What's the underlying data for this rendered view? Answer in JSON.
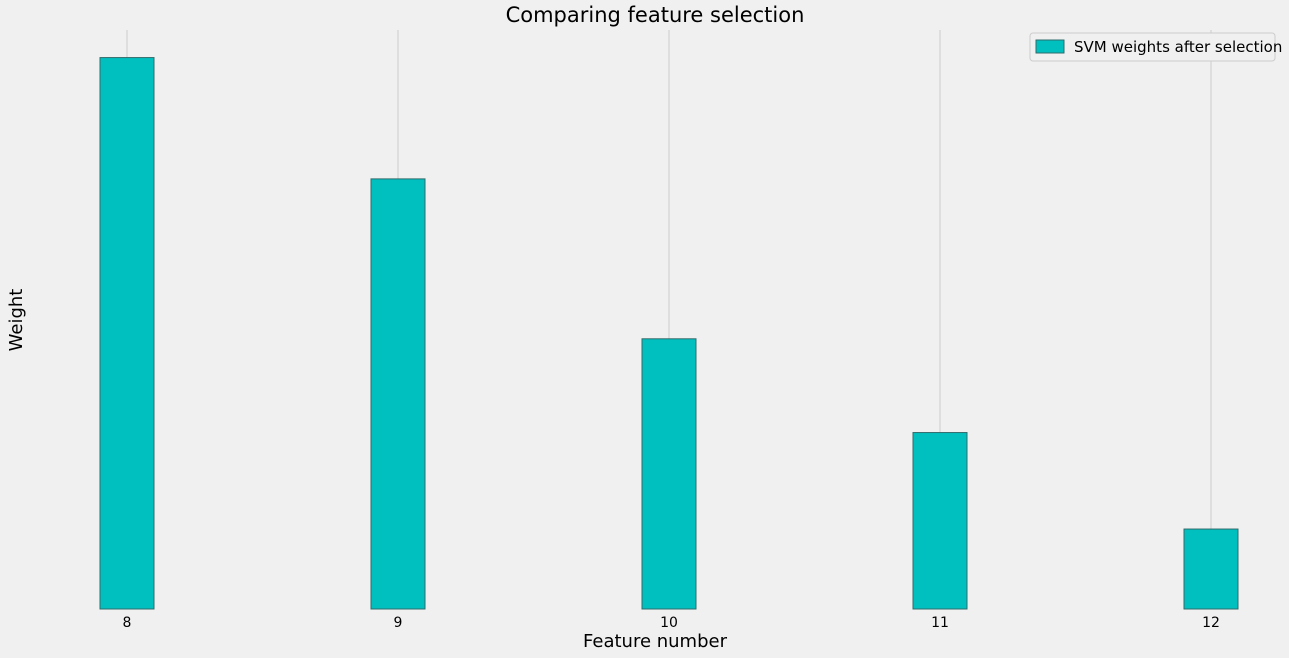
{
  "chart_data": {
    "type": "bar",
    "title": "Comparing feature selection",
    "xlabel": "Feature number",
    "ylabel": "Weight",
    "categories": [
      "8",
      "9",
      "10",
      "11",
      "12"
    ],
    "series": [
      {
        "name": "SVM weights after selection",
        "values": [
          1.0,
          0.78,
          0.49,
          0.32,
          0.145
        ]
      }
    ],
    "ylim": [
      0,
      1.05
    ],
    "grid": "x-only",
    "legend_position": "top-right",
    "colors": {
      "bar_fill": "#00bfbf",
      "bar_edge": "#2f6b6b",
      "background": "#f0f0f0",
      "grid": "#cbcbcb",
      "text": "#000000"
    }
  }
}
